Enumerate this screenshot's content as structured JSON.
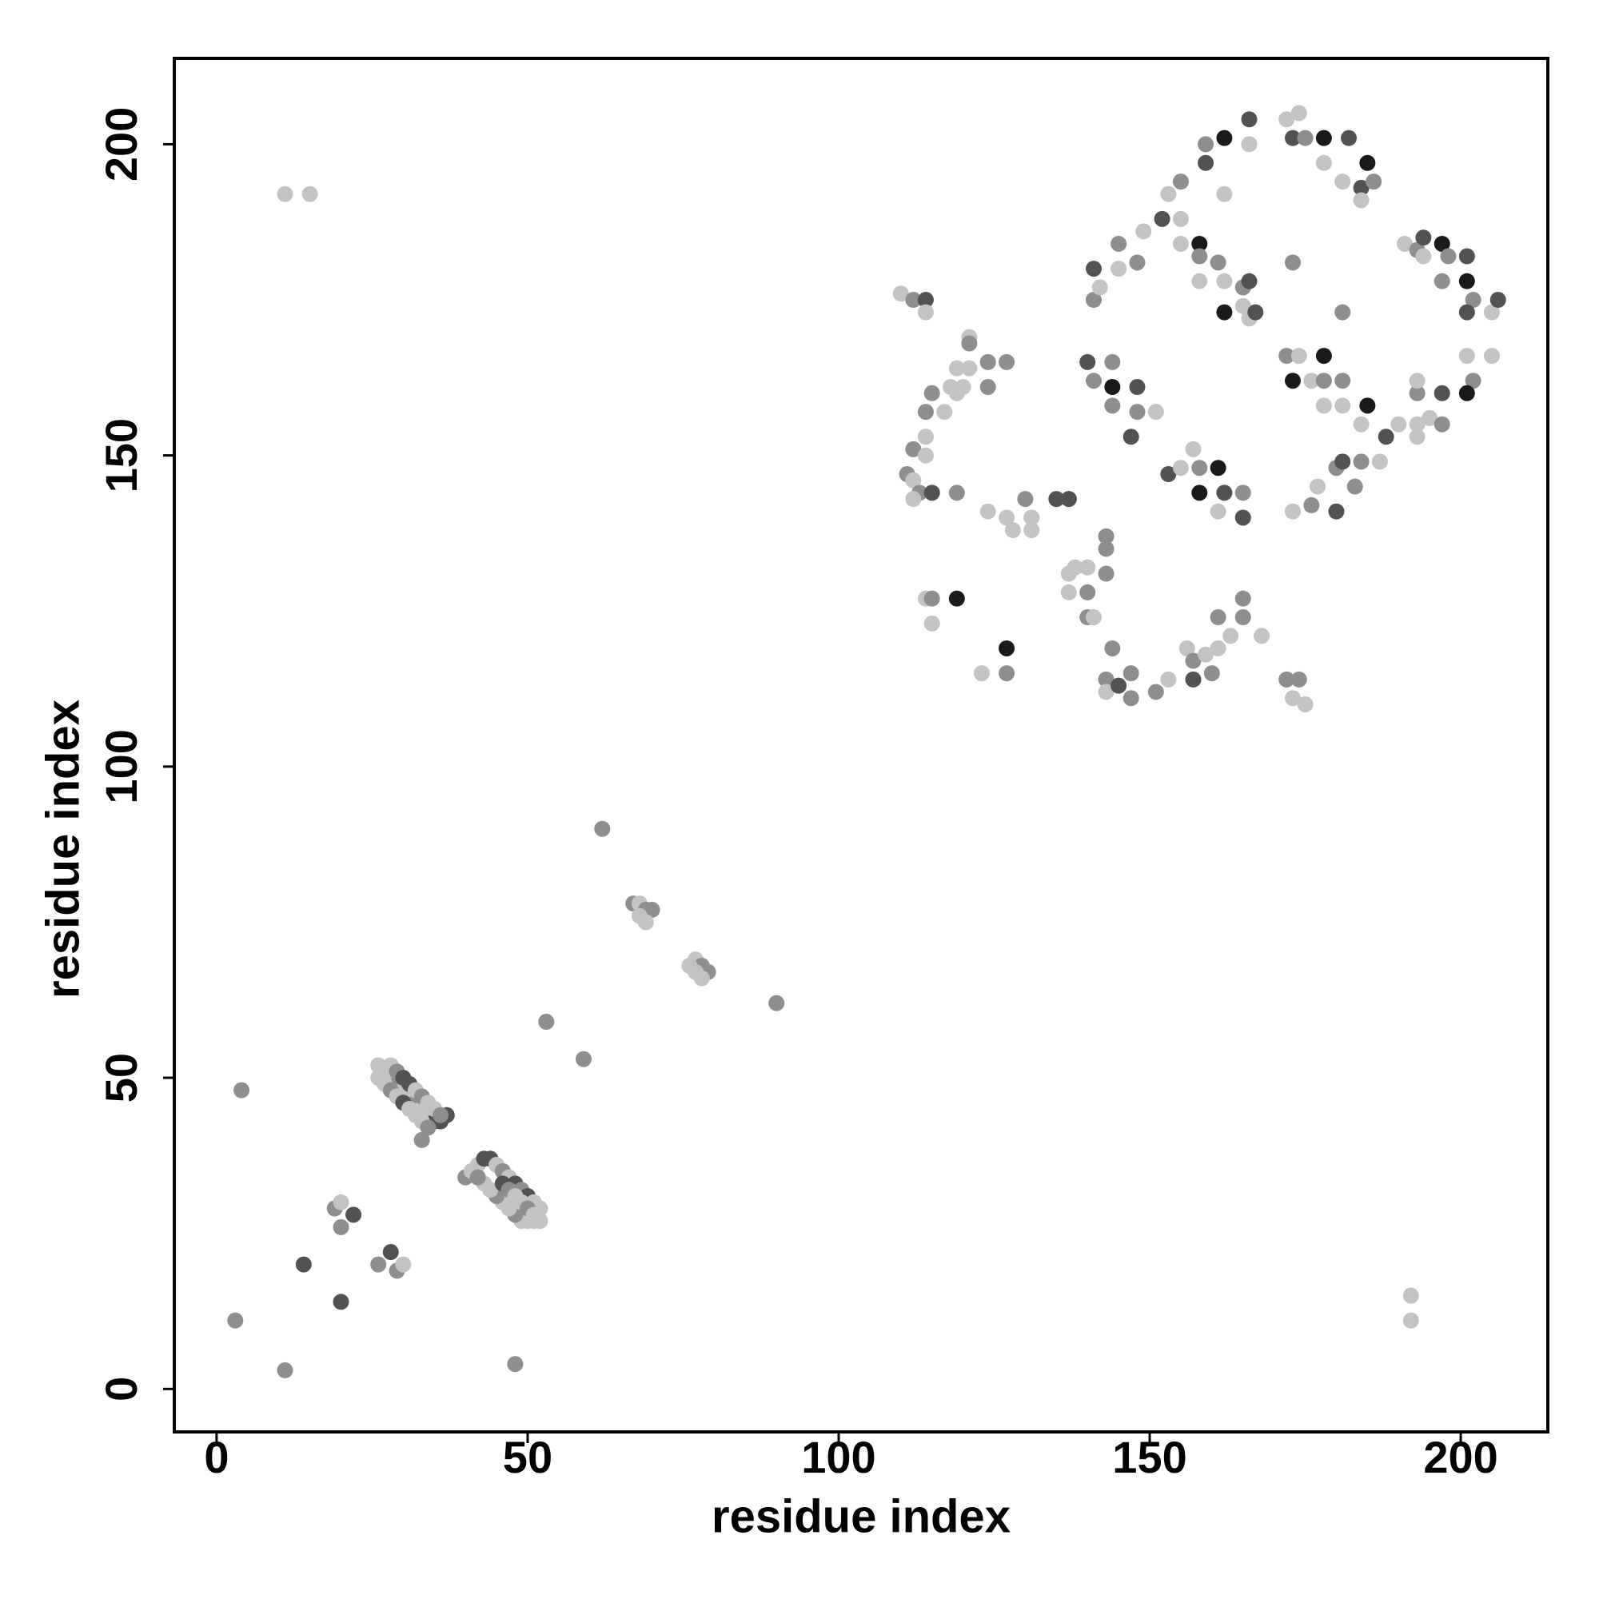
{
  "chart_data": {
    "type": "scatter",
    "x_label": "residue index",
    "y_label": "residue index",
    "xlim": [
      -6.8,
      214
    ],
    "ylim": [
      -6.9,
      213.8
    ],
    "xticks": [
      0,
      50,
      100,
      150,
      200
    ],
    "yticks": [
      0,
      50,
      100,
      150,
      200
    ],
    "x": [
      3,
      11,
      4,
      11,
      15,
      14,
      20,
      20,
      22,
      19,
      20,
      26,
      28,
      29,
      30,
      26,
      27,
      28,
      29,
      30,
      31,
      32,
      33,
      34,
      35,
      36,
      37,
      26,
      27,
      28,
      29,
      30,
      31,
      32,
      33,
      34,
      33,
      28,
      29,
      30,
      31,
      32,
      33,
      34,
      35,
      36,
      40,
      41,
      42,
      43,
      44,
      45,
      46,
      47,
      48,
      49,
      50,
      51,
      52,
      52,
      51,
      50,
      49,
      48,
      47,
      46,
      45,
      44,
      43,
      42,
      46,
      47,
      48,
      49,
      50,
      51,
      48,
      53,
      59,
      62,
      67,
      68,
      69,
      70,
      69,
      68,
      77,
      78,
      79,
      76,
      77,
      78,
      90,
      192,
      192,
      110,
      112,
      114,
      114,
      115,
      114,
      117,
      119,
      118,
      120,
      119,
      121,
      121,
      121,
      124,
      127,
      124,
      112,
      114,
      114,
      111,
      112,
      113,
      112,
      115,
      119,
      124,
      127,
      128,
      130,
      131,
      131,
      135,
      137,
      114,
      115,
      115,
      119,
      123,
      127,
      127,
      137,
      138,
      140,
      143,
      143,
      143,
      137,
      140,
      140,
      141,
      144,
      143,
      143,
      145,
      147,
      147,
      151,
      153,
      156,
      157,
      157,
      159,
      160,
      161,
      161,
      163,
      165,
      165,
      168,
      172,
      174,
      173,
      175,
      140,
      141,
      144,
      144,
      144,
      148,
      147,
      148,
      151,
      153,
      155,
      157,
      158,
      158,
      161,
      161,
      162,
      165,
      165,
      141,
      141,
      142,
      145,
      145,
      148,
      149,
      152,
      153,
      155,
      155,
      155,
      158,
      158,
      161,
      158,
      162,
      162,
      165,
      165,
      166,
      166,
      167,
      159,
      159,
      162,
      162,
      166,
      166,
      172,
      174,
      173,
      175,
      178,
      178,
      182,
      181,
      185,
      184,
      186,
      184,
      173,
      172,
      173,
      174,
      178,
      176,
      178,
      181,
      178,
      181,
      185,
      184,
      181,
      173,
      176,
      177,
      180,
      180,
      181,
      184,
      183,
      187,
      188,
      190,
      193,
      195,
      191,
      193,
      194,
      194,
      197,
      198,
      201,
      197,
      201,
      202,
      201,
      205,
      206,
      205,
      201,
      202,
      201,
      197,
      193,
      193,
      197,
      193
    ],
    "values": [
      11,
      3,
      48,
      192,
      192,
      20,
      14,
      26,
      28,
      29,
      30,
      20,
      22,
      19,
      20,
      52,
      51,
      50,
      49,
      48,
      47,
      46,
      45,
      44,
      43,
      43,
      44,
      50,
      49,
      48,
      47,
      46,
      45,
      44,
      43,
      42,
      40,
      52,
      51,
      50,
      49,
      48,
      47,
      46,
      45,
      44,
      34,
      35,
      36,
      37,
      37,
      36,
      35,
      34,
      33,
      32,
      31,
      30,
      29,
      27,
      27,
      27,
      27,
      28,
      29,
      30,
      31,
      32,
      33,
      34,
      33,
      32,
      31,
      30,
      29,
      28,
      4,
      59,
      53,
      90,
      78,
      78,
      77,
      77,
      75,
      76,
      69,
      68,
      67,
      68,
      67,
      66,
      62,
      15,
      11,
      176,
      175,
      175,
      173,
      160,
      157,
      157,
      160,
      161,
      161,
      164,
      164,
      169,
      168,
      165,
      165,
      161,
      151,
      153,
      150,
      147,
      146,
      144,
      143,
      144,
      144,
      141,
      140,
      138,
      143,
      140,
      138,
      143,
      143,
      127,
      127,
      123,
      127,
      115,
      119,
      115,
      131,
      132,
      132,
      131,
      135,
      137,
      128,
      128,
      124,
      124,
      119,
      114,
      112,
      113,
      115,
      111,
      112,
      114,
      119,
      117,
      114,
      118,
      115,
      119,
      124,
      121,
      124,
      127,
      121,
      114,
      114,
      111,
      110,
      165,
      162,
      165,
      161,
      158,
      161,
      153,
      157,
      157,
      147,
      148,
      151,
      148,
      144,
      148,
      141,
      144,
      144,
      140,
      180,
      175,
      177,
      184,
      180,
      181,
      186,
      188,
      192,
      194,
      188,
      184,
      184,
      182,
      181,
      178,
      178,
      173,
      177,
      174,
      178,
      172,
      173,
      200,
      197,
      201,
      192,
      204,
      200,
      204,
      205,
      201,
      201,
      201,
      197,
      201,
      194,
      197,
      193,
      194,
      191,
      181,
      166,
      162,
      166,
      166,
      162,
      162,
      162,
      158,
      158,
      158,
      155,
      173,
      141,
      142,
      145,
      141,
      148,
      149,
      149,
      145,
      149,
      153,
      155,
      155,
      156,
      184,
      183,
      185,
      182,
      184,
      182,
      182,
      178,
      178,
      175,
      173,
      173,
      175,
      166,
      166,
      162,
      160,
      160,
      160,
      162,
      155,
      153
    ],
    "colors": [
      "#8e8e8e",
      "#8e8e8e",
      "#8e8e8e",
      "#c3c3c3",
      "#c3c3c3",
      "#525252",
      "#525252",
      "#8e8e8e",
      "#525252",
      "#8e8e8e",
      "#c3c3c3",
      "#8e8e8e",
      "#525252",
      "#8e8e8e",
      "#c3c3c3",
      "#c3c3c3",
      "#c3c3c3",
      "#c3c3c3",
      "#8e8e8e",
      "#c3c3c3",
      "#c3c3c3",
      "#8e8e8e",
      "#c3c3c3",
      "#c3c3c3",
      "#525252",
      "#525252",
      "#525252",
      "#c3c3c3",
      "#c3c3c3",
      "#8e8e8e",
      "#c3c3c3",
      "#525252",
      "#c3c3c3",
      "#c3c3c3",
      "#c3c3c3",
      "#8e8e8e",
      "#8e8e8e",
      "#c3c3c3",
      "#8e8e8e",
      "#525252",
      "#525252",
      "#c3c3c3",
      "#8e8e8e",
      "#c3c3c3",
      "#c3c3c3",
      "#8e8e8e",
      "#8e8e8e",
      "#c3c3c3",
      "#c3c3c3",
      "#525252",
      "#525252",
      "#c3c3c3",
      "#8e8e8e",
      "#c3c3c3",
      "#525252",
      "#8e8e8e",
      "#525252",
      "#c3c3c3",
      "#c3c3c3",
      "#c3c3c3",
      "#c3c3c3",
      "#c3c3c3",
      "#c3c3c3",
      "#8e8e8e",
      "#c3c3c3",
      "#c3c3c3",
      "#8e8e8e",
      "#c3c3c3",
      "#c3c3c3",
      "#8e8e8e",
      "#525252",
      "#8e8e8e",
      "#c3c3c3",
      "#c3c3c3",
      "#8e8e8e",
      "#c3c3c3",
      "#8e8e8e",
      "#8e8e8e",
      "#8e8e8e",
      "#8e8e8e",
      "#8e8e8e",
      "#c3c3c3",
      "#8e8e8e",
      "#8e8e8e",
      "#c3c3c3",
      "#c3c3c3",
      "#c3c3c3",
      "#8e8e8e",
      "#8e8e8e",
      "#c3c3c3",
      "#c3c3c3",
      "#c3c3c3",
      "#8e8e8e",
      "#c3c3c3",
      "#c3c3c3",
      "#c3c3c3",
      "#8e8e8e",
      "#525252",
      "#c3c3c3",
      "#8e8e8e",
      "#8e8e8e",
      "#c3c3c3",
      "#c3c3c3",
      "#c3c3c3",
      "#c3c3c3",
      "#c3c3c3",
      "#c3c3c3",
      "#c3c3c3",
      "#8e8e8e",
      "#8e8e8e",
      "#8e8e8e",
      "#8e8e8e",
      "#8e8e8e",
      "#c3c3c3",
      "#c3c3c3",
      "#8e8e8e",
      "#c3c3c3",
      "#8e8e8e",
      "#c3c3c3",
      "#525252",
      "#8e8e8e",
      "#c3c3c3",
      "#c3c3c3",
      "#c3c3c3",
      "#8e8e8e",
      "#c3c3c3",
      "#c3c3c3",
      "#525252",
      "#525252",
      "#c3c3c3",
      "#8e8e8e",
      "#c3c3c3",
      "#1a1a1a",
      "#c3c3c3",
      "#1a1a1a",
      "#8e8e8e",
      "#c3c3c3",
      "#c3c3c3",
      "#c3c3c3",
      "#8e8e8e",
      "#8e8e8e",
      "#8e8e8e",
      "#c3c3c3",
      "#8e8e8e",
      "#8e8e8e",
      "#c3c3c3",
      "#8e8e8e",
      "#8e8e8e",
      "#c3c3c3",
      "#525252",
      "#8e8e8e",
      "#8e8e8e",
      "#8e8e8e",
      "#c3c3c3",
      "#c3c3c3",
      "#8e8e8e",
      "#525252",
      "#c3c3c3",
      "#8e8e8e",
      "#c3c3c3",
      "#8e8e8e",
      "#c3c3c3",
      "#8e8e8e",
      "#8e8e8e",
      "#c3c3c3",
      "#8e8e8e",
      "#8e8e8e",
      "#c3c3c3",
      "#c3c3c3",
      "#525252",
      "#8e8e8e",
      "#8e8e8e",
      "#1a1a1a",
      "#8e8e8e",
      "#525252",
      "#525252",
      "#8e8e8e",
      "#c3c3c3",
      "#525252",
      "#c3c3c3",
      "#c3c3c3",
      "#8e8e8e",
      "#1a1a1a",
      "#1a1a1a",
      "#c3c3c3",
      "#525252",
      "#8e8e8e",
      "#525252",
      "#525252",
      "#8e8e8e",
      "#c3c3c3",
      "#8e8e8e",
      "#c3c3c3",
      "#8e8e8e",
      "#c3c3c3",
      "#525252",
      "#c3c3c3",
      "#8e8e8e",
      "#c3c3c3",
      "#c3c3c3",
      "#1a1a1a",
      "#8e8e8e",
      "#8e8e8e",
      "#c3c3c3",
      "#c3c3c3",
      "#1a1a1a",
      "#8e8e8e",
      "#c3c3c3",
      "#525252",
      "#c3c3c3",
      "#525252",
      "#8e8e8e",
      "#525252",
      "#1a1a1a",
      "#c3c3c3",
      "#525252",
      "#c3c3c3",
      "#c3c3c3",
      "#c3c3c3",
      "#525252",
      "#8e8e8e",
      "#1a1a1a",
      "#c3c3c3",
      "#525252",
      "#c3c3c3",
      "#1a1a1a",
      "#525252",
      "#8e8e8e",
      "#c3c3c3",
      "#8e8e8e",
      "#8e8e8e",
      "#1a1a1a",
      "#c3c3c3",
      "#1a1a1a",
      "#c3c3c3",
      "#8e8e8e",
      "#8e8e8e",
      "#c3c3c3",
      "#c3c3c3",
      "#1a1a1a",
      "#c3c3c3",
      "#8e8e8e",
      "#c3c3c3",
      "#8e8e8e",
      "#c3c3c3",
      "#525252",
      "#8e8e8e",
      "#525252",
      "#8e8e8e",
      "#8e8e8e",
      "#c3c3c3",
      "#525252",
      "#c3c3c3",
      "#c3c3c3",
      "#c3c3c3",
      "#c3c3c3",
      "#8e8e8e",
      "#525252",
      "#c3c3c3",
      "#1a1a1a",
      "#8e8e8e",
      "#525252",
      "#8e8e8e",
      "#1a1a1a",
      "#8e8e8e",
      "#525252",
      "#c3c3c3",
      "#525252",
      "#c3c3c3",
      "#c3c3c3",
      "#8e8e8e",
      "#1a1a1a",
      "#525252",
      "#8e8e8e",
      "#c3c3c3",
      "#8e8e8e",
      "#c3c3c3"
    ]
  }
}
